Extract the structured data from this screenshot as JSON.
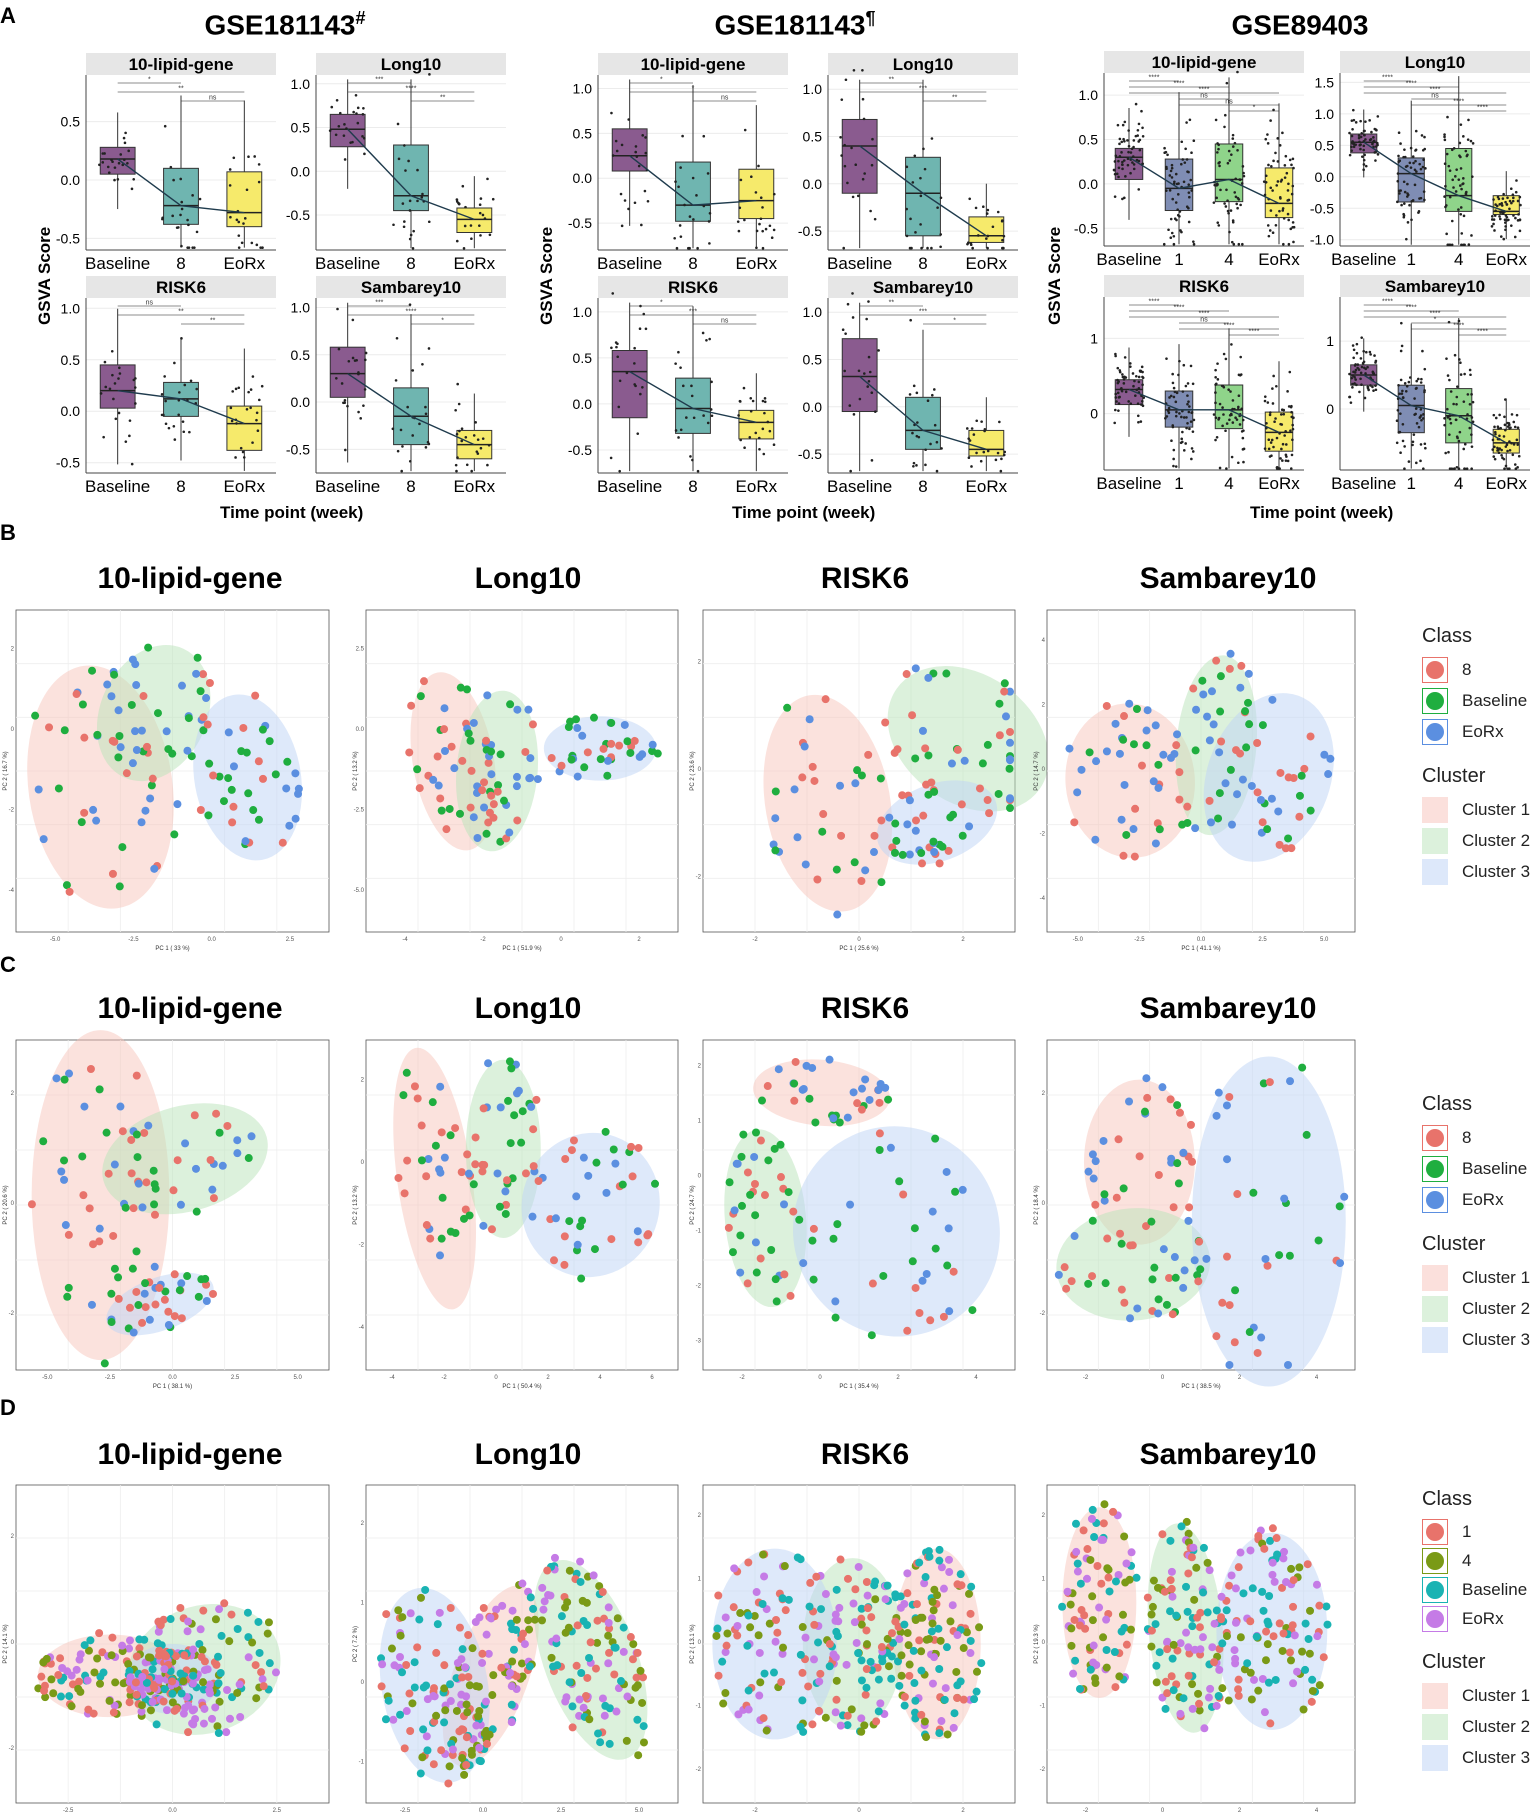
{
  "panel_labels": {
    "a": "A",
    "b": "B",
    "c": "C",
    "d": "D"
  },
  "datasets": [
    {
      "title": "GSE181143",
      "sup": "#"
    },
    {
      "title": "GSE181143",
      "sup": "¶"
    },
    {
      "title": "GSE89403",
      "sup": ""
    }
  ],
  "axis": {
    "ylabel": "GSVA Score",
    "xlabel": "Time point (week)"
  },
  "pca_titles": [
    "10-lipid-gene",
    "Long10",
    "RISK6",
    "Sambarey10"
  ],
  "legend_b": {
    "class_title": "Class",
    "classes": [
      {
        "label": "8",
        "color": "#e8736b"
      },
      {
        "label": "Baseline",
        "color": "#1fae3f"
      },
      {
        "label": "EoRx",
        "color": "#5b8fe0"
      }
    ],
    "cluster_title": "Cluster",
    "clusters": [
      {
        "label": "Cluster 1",
        "color": "#fbe0dc"
      },
      {
        "label": "Cluster 2",
        "color": "#dcf1dc"
      },
      {
        "label": "Cluster 3",
        "color": "#dde8fa"
      }
    ]
  },
  "legend_d": {
    "class_title": "Class",
    "classes": [
      {
        "label": "1",
        "color": "#e8736b"
      },
      {
        "label": "4",
        "color": "#7a9a16"
      },
      {
        "label": "Baseline",
        "color": "#19b3b3"
      },
      {
        "label": "EoRx",
        "color": "#c57be6"
      }
    ],
    "cluster_title": "Cluster",
    "clusters": [
      {
        "label": "Cluster 1",
        "color": "#fbe0dc"
      },
      {
        "label": "Cluster 2",
        "color": "#dcf1dc"
      },
      {
        "label": "Cluster 3",
        "color": "#dde8fa"
      }
    ]
  },
  "chart_data": [
    {
      "type": "box",
      "dataset": "GSE181143#",
      "title": "10-lipid-gene",
      "categories": [
        "Baseline",
        "8",
        "EoRx"
      ],
      "medians": [
        0.18,
        -0.22,
        -0.28
      ],
      "q1": [
        0.05,
        -0.38,
        -0.4
      ],
      "q3": [
        0.28,
        0.1,
        0.07
      ],
      "ylim": [
        -0.6,
        0.9
      ],
      "yticks": [
        -0.5,
        0.0,
        0.5
      ],
      "ytick_labels": [
        "-0.5",
        "0.0",
        "0.5"
      ],
      "sig": [
        "*",
        "**",
        "ns"
      ]
    },
    {
      "type": "box",
      "dataset": "GSE181143#",
      "title": "Long10",
      "categories": [
        "Baseline",
        "8",
        "EoRx"
      ],
      "medians": [
        0.48,
        -0.28,
        -0.55
      ],
      "q1": [
        0.28,
        -0.45,
        -0.7
      ],
      "q3": [
        0.65,
        0.3,
        -0.42
      ],
      "ylim": [
        -0.9,
        1.1
      ],
      "yticks": [
        -0.5,
        0.0,
        0.5,
        1.0
      ],
      "ytick_labels": [
        "-0.5",
        "0.0",
        "0.5",
        "1.0"
      ],
      "sig": [
        "***",
        "****",
        "**"
      ]
    },
    {
      "type": "box",
      "dataset": "GSE181143#",
      "title": "RISK6",
      "categories": [
        "Baseline",
        "8",
        "EoRx"
      ],
      "medians": [
        0.2,
        0.12,
        -0.12
      ],
      "q1": [
        0.03,
        -0.05,
        -0.38
      ],
      "q3": [
        0.45,
        0.28,
        0.05
      ],
      "ylim": [
        -0.6,
        1.1
      ],
      "yticks": [
        -0.5,
        0.0,
        0.5,
        1.0
      ],
      "ytick_labels": [
        "-0.5",
        "0.0",
        "0.5",
        "1.0"
      ],
      "sig": [
        "ns",
        "**",
        "**"
      ]
    },
    {
      "type": "box",
      "dataset": "GSE181143#",
      "title": "Sambarey10",
      "categories": [
        "Baseline",
        "8",
        "EoRx"
      ],
      "medians": [
        0.3,
        -0.15,
        -0.45
      ],
      "q1": [
        0.05,
        -0.45,
        -0.6
      ],
      "q3": [
        0.58,
        0.15,
        -0.3
      ],
      "ylim": [
        -0.75,
        1.1
      ],
      "yticks": [
        -0.5,
        0.0,
        0.5,
        1.0
      ],
      "ytick_labels": [
        "-0.5",
        "0.0",
        "0.5",
        "1.0"
      ],
      "sig": [
        "***",
        "****",
        "*"
      ]
    },
    {
      "type": "box",
      "dataset": "GSE181143¶",
      "title": "10-lipid-gene",
      "categories": [
        "Baseline",
        "8",
        "EoRx"
      ],
      "medians": [
        0.25,
        -0.3,
        -0.25
      ],
      "q1": [
        0.08,
        -0.48,
        -0.45
      ],
      "q3": [
        0.55,
        0.18,
        0.1
      ],
      "ylim": [
        -0.8,
        1.15
      ],
      "yticks": [
        -0.5,
        0.0,
        0.5,
        1.0
      ],
      "ytick_labels": [
        "-0.5",
        "0.0",
        "0.5",
        "1.0"
      ],
      "sig": [
        "*",
        "*",
        "ns"
      ]
    },
    {
      "type": "box",
      "dataset": "GSE181143¶",
      "title": "Long10",
      "categories": [
        "Baseline",
        "8",
        "EoRx"
      ],
      "medians": [
        0.4,
        -0.1,
        -0.55
      ],
      "q1": [
        -0.1,
        -0.55,
        -0.62
      ],
      "q3": [
        0.68,
        0.28,
        -0.35
      ],
      "ylim": [
        -0.7,
        1.15
      ],
      "yticks": [
        -0.5,
        0.0,
        0.5,
        1.0
      ],
      "ytick_labels": [
        "-0.5",
        "0.0",
        "0.5",
        "1.0"
      ],
      "sig": [
        "**",
        "***",
        "**"
      ]
    },
    {
      "type": "box",
      "dataset": "GSE181143¶",
      "title": "RISK6",
      "categories": [
        "Baseline",
        "8",
        "EoRx"
      ],
      "medians": [
        0.35,
        -0.05,
        -0.2
      ],
      "q1": [
        -0.15,
        -0.32,
        -0.38
      ],
      "q3": [
        0.58,
        0.28,
        -0.07
      ],
      "ylim": [
        -0.75,
        1.15
      ],
      "yticks": [
        -0.5,
        0.0,
        0.5,
        1.0
      ],
      "ytick_labels": [
        "-0.5",
        "0.0",
        "0.5",
        "1.0"
      ],
      "sig": [
        "*",
        "***",
        "ns"
      ]
    },
    {
      "type": "box",
      "dataset": "GSE181143¶",
      "title": "Sambarey10",
      "categories": [
        "Baseline",
        "8",
        "EoRx"
      ],
      "medians": [
        0.32,
        -0.25,
        -0.45
      ],
      "q1": [
        -0.05,
        -0.45,
        -0.52
      ],
      "q3": [
        0.72,
        0.1,
        -0.25
      ],
      "ylim": [
        -0.7,
        1.15
      ],
      "yticks": [
        -0.5,
        0.0,
        0.5,
        1.0
      ],
      "ytick_labels": [
        "-0.5",
        "0.0",
        "0.5",
        "1.0"
      ],
      "sig": [
        "**",
        "***",
        "*"
      ]
    },
    {
      "type": "box",
      "dataset": "GSE89403",
      "title": "10-lipid-gene",
      "categories": [
        "Baseline",
        "1",
        "4",
        "EoRx"
      ],
      "medians": [
        0.3,
        -0.05,
        0.05,
        -0.22
      ],
      "q1": [
        0.05,
        -0.3,
        -0.2,
        -0.38
      ],
      "q3": [
        0.4,
        0.28,
        0.45,
        0.18
      ],
      "ylim": [
        -0.7,
        1.25
      ],
      "yticks": [
        -0.5,
        0.0,
        0.5,
        1.0
      ],
      "ytick_labels": [
        "-0.5",
        "0.0",
        "0.5",
        "1.0"
      ],
      "sig": [
        "****",
        "****",
        "****",
        "ns",
        "ns",
        "*"
      ]
    },
    {
      "type": "box",
      "dataset": "GSE89403",
      "title": "Long10",
      "categories": [
        "Baseline",
        "1",
        "4",
        "EoRx"
      ],
      "medians": [
        0.55,
        0.05,
        -0.3,
        -0.55
      ],
      "q1": [
        0.38,
        -0.4,
        -0.55,
        -0.6
      ],
      "q3": [
        0.68,
        0.3,
        0.45,
        -0.3
      ],
      "ylim": [
        -1.1,
        1.65
      ],
      "yticks": [
        -1.0,
        -0.5,
        0.0,
        0.5,
        1.0,
        1.5
      ],
      "ytick_labels": [
        "-1.0",
        "-0.5",
        "0.0",
        "0.5",
        "1.0",
        "1.5"
      ],
      "sig": [
        "****",
        "****",
        "****",
        "ns",
        "****",
        "****"
      ]
    },
    {
      "type": "box",
      "dataset": "GSE89403",
      "title": "RISK6",
      "categories": [
        "Baseline",
        "1",
        "4",
        "EoRx"
      ],
      "medians": [
        0.32,
        0.05,
        0.05,
        -0.25
      ],
      "q1": [
        0.12,
        -0.18,
        -0.2,
        -0.5
      ],
      "q3": [
        0.45,
        0.3,
        0.38,
        0.02
      ],
      "ylim": [
        -0.75,
        1.55
      ],
      "yticks": [
        0,
        1
      ],
      "ytick_labels": [
        "0",
        "1"
      ],
      "sig": [
        "****",
        "****",
        "****",
        "ns",
        "****",
        "****"
      ]
    },
    {
      "type": "box",
      "dataset": "GSE89403",
      "title": "Sambarey10",
      "categories": [
        "Baseline",
        "1",
        "4",
        "EoRx"
      ],
      "medians": [
        0.5,
        0.05,
        -0.1,
        -0.5
      ],
      "q1": [
        0.35,
        -0.35,
        -0.5,
        -0.65
      ],
      "q3": [
        0.65,
        0.35,
        0.3,
        -0.3
      ],
      "ylim": [
        -0.9,
        1.65
      ],
      "yticks": [
        0,
        1
      ],
      "ytick_labels": [
        "0",
        "1"
      ],
      "sig": [
        "****",
        "****",
        "****",
        "*",
        "****",
        "****"
      ]
    },
    {
      "type": "scatter",
      "panel": "B",
      "title": "10-lipid-gene",
      "xlabel": "PC 1 ( 33 %)",
      "ylabel": "PC 2 ( 16.7 %)",
      "xticks": [
        "-5.0",
        "-2.5",
        "0.0",
        "2.5"
      ],
      "yticks": [
        "2",
        "0",
        "-2",
        "-4"
      ]
    },
    {
      "type": "scatter",
      "panel": "B",
      "title": "Long10",
      "xlabel": "PC 1 ( 51.9 %)",
      "ylabel": "PC 2 ( 13.2 %)",
      "xticks": [
        "-4",
        "-2",
        "0",
        "2"
      ],
      "yticks": [
        "2.5",
        "0.0",
        "-2.5",
        "-5.0"
      ]
    },
    {
      "type": "scatter",
      "panel": "B",
      "title": "RISK6",
      "xlabel": "PC 1 ( 25.6 %)",
      "ylabel": "PC 2 ( 23.6 %)",
      "xticks": [
        "-2",
        "0",
        "2"
      ],
      "yticks": [
        "2",
        "0",
        "-2"
      ]
    },
    {
      "type": "scatter",
      "panel": "B",
      "title": "Sambarey10",
      "xlabel": "PC 1 ( 41.1 %)",
      "ylabel": "PC 2 ( 14.7 %)",
      "xticks": [
        "-5.0",
        "-2.5",
        "0.0",
        "2.5",
        "5.0"
      ],
      "yticks": [
        "4",
        "2",
        "0",
        "-2",
        "-4"
      ]
    },
    {
      "type": "scatter",
      "panel": "C",
      "title": "10-lipid-gene",
      "xlabel": "PC 1 ( 38.1 %)",
      "ylabel": "PC 2 ( 20.6 %)",
      "xticks": [
        "-5.0",
        "-2.5",
        "0.0",
        "2.5",
        "5.0"
      ],
      "yticks": [
        "2",
        "0",
        "-2"
      ]
    },
    {
      "type": "scatter",
      "panel": "C",
      "title": "Long10",
      "xlabel": "PC 1 ( 50.4 %)",
      "ylabel": "PC 2 ( 13.2 %)",
      "xticks": [
        "-4",
        "-2",
        "0",
        "2",
        "4",
        "6"
      ],
      "yticks": [
        "2",
        "0",
        "-2",
        "-4"
      ]
    },
    {
      "type": "scatter",
      "panel": "C",
      "title": "RISK6",
      "xlabel": "PC 1 ( 35.4 %)",
      "ylabel": "PC 2 ( 24.7 %)",
      "xticks": [
        "-2",
        "0",
        "2",
        "4"
      ],
      "yticks": [
        "2",
        "1",
        "0",
        "-1",
        "-2",
        "-3"
      ]
    },
    {
      "type": "scatter",
      "panel": "C",
      "title": "Sambarey10",
      "xlabel": "PC 1 ( 38.5 %)",
      "ylabel": "PC 2 ( 18.4 %)",
      "xticks": [
        "-2",
        "0",
        "2",
        "4"
      ],
      "yticks": [
        "2",
        "0",
        "-2"
      ]
    },
    {
      "type": "scatter",
      "panel": "D",
      "title": "10-lipid-gene",
      "xlabel": "PC 1 ( 58.6 %)",
      "ylabel": "PC 2 ( 14.1 %)",
      "xticks": [
        "-2.5",
        "0.0",
        "2.5"
      ],
      "yticks": [
        "2",
        "0",
        "-2"
      ]
    },
    {
      "type": "scatter",
      "panel": "D",
      "title": "Long10",
      "xlabel": "PC 1 ( 72.6 %)",
      "ylabel": "PC 2 ( 7.2 %)",
      "xticks": [
        "-2.5",
        "0.0",
        "2.5",
        "5.0"
      ],
      "yticks": [
        "2",
        "1",
        "0",
        "-1"
      ]
    },
    {
      "type": "scatter",
      "panel": "D",
      "title": "RISK6",
      "xlabel": "PC 1 ( 73.5 %)",
      "ylabel": "PC 2 ( 13.1 %)",
      "xticks": [
        "-2",
        "0",
        "2"
      ],
      "yticks": [
        "2",
        "1",
        "0",
        "-1",
        "-2"
      ]
    },
    {
      "type": "scatter",
      "panel": "D",
      "title": "Sambarey10",
      "xlabel": "PC 1 ( 49 %)",
      "ylabel": "PC 2 ( 19.3 %)",
      "xticks": [
        "-2",
        "0",
        "2",
        "4"
      ],
      "yticks": [
        "2",
        "1",
        "0",
        "-1",
        "-2"
      ]
    }
  ]
}
